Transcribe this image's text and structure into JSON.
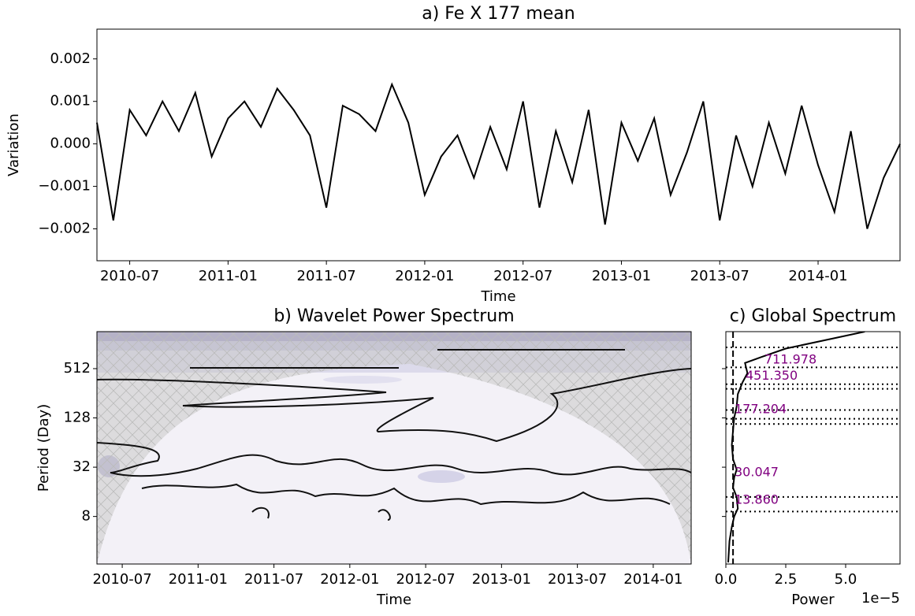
{
  "chart_data": [
    {
      "type": "line",
      "title": "a) Fe X 177 mean",
      "xlabel": "Time",
      "ylabel": "Variation",
      "color": "#000000",
      "x": [
        "2010-05",
        "2010-06",
        "2010-07",
        "2010-08",
        "2010-09",
        "2010-10",
        "2010-11",
        "2010-12",
        "2011-01",
        "2011-02",
        "2011-03",
        "2011-04",
        "2011-05",
        "2011-06",
        "2011-07",
        "2011-08",
        "2011-09",
        "2011-10",
        "2011-11",
        "2011-12",
        "2012-01",
        "2012-02",
        "2012-03",
        "2012-04",
        "2012-05",
        "2012-06",
        "2012-07",
        "2012-08",
        "2012-09",
        "2012-10",
        "2012-11",
        "2012-12",
        "2013-01",
        "2013-02",
        "2013-03",
        "2013-04",
        "2013-05",
        "2013-06",
        "2013-07",
        "2013-08",
        "2013-09",
        "2013-10",
        "2013-11",
        "2013-12",
        "2014-01",
        "2014-02",
        "2014-03",
        "2014-04",
        "2014-05",
        "2014-06"
      ],
      "values": [
        0.0005,
        -0.0018,
        0.0008,
        0.0002,
        0.001,
        0.0003,
        0.0012,
        -0.0003,
        0.0006,
        0.001,
        0.0004,
        0.0013,
        0.0008,
        0.0002,
        -0.0015,
        0.0009,
        0.0007,
        0.0003,
        0.0014,
        0.0005,
        -0.0012,
        -0.0003,
        0.0002,
        -0.0008,
        0.0004,
        -0.0006,
        0.001,
        -0.0015,
        0.0003,
        -0.0009,
        0.0008,
        -0.0019,
        0.0005,
        -0.0004,
        0.0006,
        -0.0012,
        -0.0002,
        0.001,
        -0.0018,
        0.0002,
        -0.001,
        0.0005,
        -0.0007,
        0.0009,
        -0.0005,
        -0.0016,
        0.0003,
        -0.002,
        -0.0008,
        0
      ],
      "xlim": [
        "2010-05",
        "2014-06"
      ],
      "xticks": [
        "2010-07",
        "2011-01",
        "2011-07",
        "2012-01",
        "2012-07",
        "2013-01",
        "2013-07",
        "2014-01"
      ],
      "ylim": [
        -0.00275,
        0.0027
      ],
      "yticks": [
        {
          "value": -0.002,
          "label": "−0.002"
        },
        {
          "value": -0.001,
          "label": "−0.001"
        },
        {
          "value": 0,
          "label": "0.000"
        },
        0.001,
        0.002
      ]
    },
    {
      "type": "contour",
      "title": "b) Wavelet Power Spectrum",
      "xlabel": "Time",
      "ylabel": "Period (Day)",
      "xlim": [
        "2010-05",
        "2014-04"
      ],
      "xticks": [
        "2010-07",
        "2011-01",
        "2011-07",
        "2012-01",
        "2012-07",
        "2013-01",
        "2013-07",
        "2014-01"
      ],
      "ylim": [
        2.1,
        1450
      ],
      "yscale": "log",
      "yticks": [
        8,
        32,
        128,
        512
      ]
    },
    {
      "type": "line",
      "orientation": "horizontal",
      "title": "c) Global Spectrum",
      "xlabel": "Power",
      "x_offset_label": "1e−5",
      "color": "#000000",
      "y": [
        2.2,
        4,
        6,
        8,
        10,
        13.86,
        18,
        24,
        30,
        40,
        60,
        90,
        128,
        177,
        250,
        350,
        451,
        600,
        712,
        900,
        1200,
        1450
      ],
      "values": [
        1e-06,
        1.5e-06,
        2.5e-06,
        3.5e-06,
        5e-06,
        4.5e-06,
        3e-06,
        3.5e-06,
        4.5e-06,
        3e-06,
        2.5e-06,
        3e-06,
        3.5e-06,
        4.5e-06,
        5e-06,
        7e-06,
        9e-06,
        8e-06,
        1.5e-05,
        2.5e-05,
        4.5e-05,
        5.8e-05
      ],
      "xlim": [
        0,
        7.27e-05
      ],
      "xticks": [
        {
          "value": 0,
          "label": "0.0"
        },
        {
          "value": 2.5e-05,
          "label": "2.5"
        },
        {
          "value": 5e-05,
          "label": "5.0"
        }
      ],
      "ylim": [
        2.1,
        1450
      ],
      "yscale": "log",
      "significance": 3e-06,
      "period_lines": [
        930,
        530,
        330,
        290,
        160,
        125,
        108,
        13.86,
        9.2
      ],
      "peak_labels": [
        711.978,
        {
          "value": 451.35,
          "label": "451.350"
        },
        177.204,
        30.047,
        {
          "value": 13.86,
          "label": "13.860"
        }
      ],
      "peak_color": "#800080"
    }
  ]
}
